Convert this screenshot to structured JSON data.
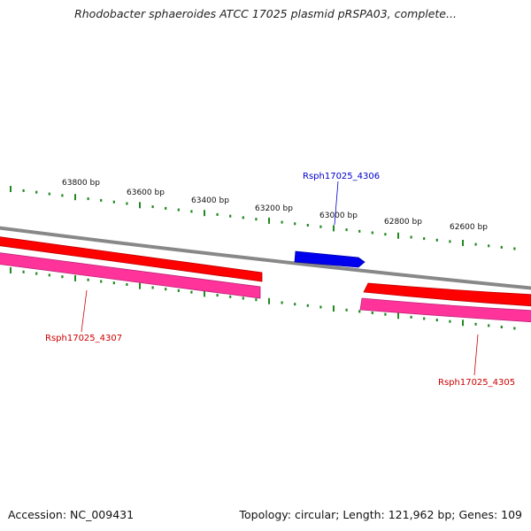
{
  "title": "Rhodobacter sphaeroides ATCC 17025 plasmid pRSPA03, complete...",
  "footer": {
    "accession": "Accession: NC_009431",
    "summary": "Topology: circular; Length: 121,962 bp; Genes: 109"
  },
  "colors": {
    "backbone": "#888888",
    "forward_gene": "#ff0000",
    "forward_gene_dark": "#cc0000",
    "reverse_gene": "#ff3399",
    "reverse_gene_dark": "#cc2277",
    "feature_blue": "#0000ee",
    "tick": "#228822",
    "label_red": "#cc0000",
    "label_blue": "#0000cc"
  },
  "scale_labels": [
    "63800 bp",
    "63600 bp",
    "63400 bp",
    "63200 bp",
    "63000 bp",
    "62800 bp",
    "62600 bp"
  ],
  "genes": [
    {
      "label": "Rsph17025_4306",
      "color": "blue"
    },
    {
      "label": "Rsph17025_4307",
      "color": "red"
    },
    {
      "label": "Rsph17025_4305",
      "color": "red"
    }
  ]
}
